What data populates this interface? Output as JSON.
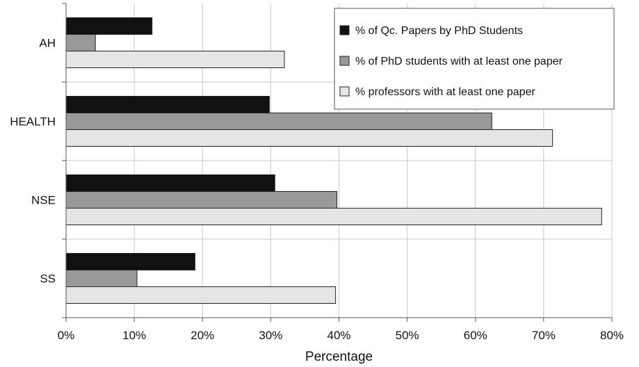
{
  "chart_data": {
    "type": "bar",
    "orientation": "horizontal",
    "categories": [
      "AH",
      "HEALTH",
      "NSE",
      "SS"
    ],
    "series": [
      {
        "name": "% of Qc. Papers by PhD Students",
        "values": [
          12.6,
          29.8,
          30.6,
          18.9
        ],
        "color": "#111111"
      },
      {
        "name": "% of PhD students with at least one paper",
        "values": [
          4.3,
          62.4,
          39.7,
          10.4
        ],
        "color": "#999999"
      },
      {
        "name": "% professors with at least one paper",
        "values": [
          32.0,
          71.3,
          78.5,
          39.5
        ],
        "color": "#e5e5e5"
      }
    ],
    "xlim": [
      0,
      80
    ],
    "xticks": [
      0,
      10,
      20,
      30,
      40,
      50,
      60,
      70,
      80
    ],
    "tick_suffix": "%",
    "xlabel": "Percentage",
    "ylabel": "",
    "title": "",
    "grid": true,
    "legend_position": "top-right"
  }
}
